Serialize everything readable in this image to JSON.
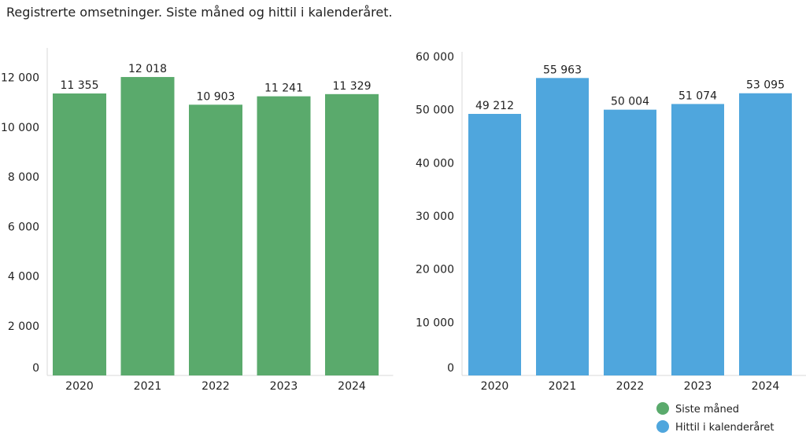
{
  "title": "Registrerte omsetninger. Siste måned og hittil i kalenderåret.",
  "legend": [
    {
      "label": "Siste måned",
      "color": "#5aaa6c"
    },
    {
      "label": "Hittil i kalenderåret",
      "color": "#4fa6dd"
    }
  ],
  "chart_data": [
    {
      "type": "bar",
      "categories": [
        "2020",
        "2021",
        "2022",
        "2023",
        "2024"
      ],
      "series": [
        {
          "name": "Siste måned",
          "values": [
            11355,
            12018,
            10903,
            11241,
            11329
          ]
        }
      ],
      "data_labels": [
        "11 355",
        "12 018",
        "10 903",
        "11 241",
        "11 329"
      ],
      "yticks": [
        0,
        2000,
        4000,
        6000,
        8000,
        10000,
        12000
      ],
      "ytick_labels": [
        "0",
        "2 000",
        "4 000",
        "6 000",
        "8 000",
        "10 000",
        "12 000"
      ],
      "ylim": [
        0,
        13000
      ],
      "color": "#5aaa6c",
      "grid": false
    },
    {
      "type": "bar",
      "categories": [
        "2020",
        "2021",
        "2022",
        "2023",
        "2024"
      ],
      "series": [
        {
          "name": "Hittil i kalenderåret",
          "values": [
            49212,
            55963,
            50004,
            51074,
            53095
          ]
        }
      ],
      "data_labels": [
        "49 212",
        "55 963",
        "50 004",
        "51 074",
        "53 095"
      ],
      "yticks": [
        0,
        10000,
        20000,
        30000,
        40000,
        50000,
        60000
      ],
      "ytick_labels": [
        "0",
        "10 000",
        "20 000",
        "30 000",
        "40 000",
        "50 000",
        "60 000"
      ],
      "ylim": [
        0,
        60000
      ],
      "color": "#4fa6dd",
      "grid": false
    }
  ]
}
